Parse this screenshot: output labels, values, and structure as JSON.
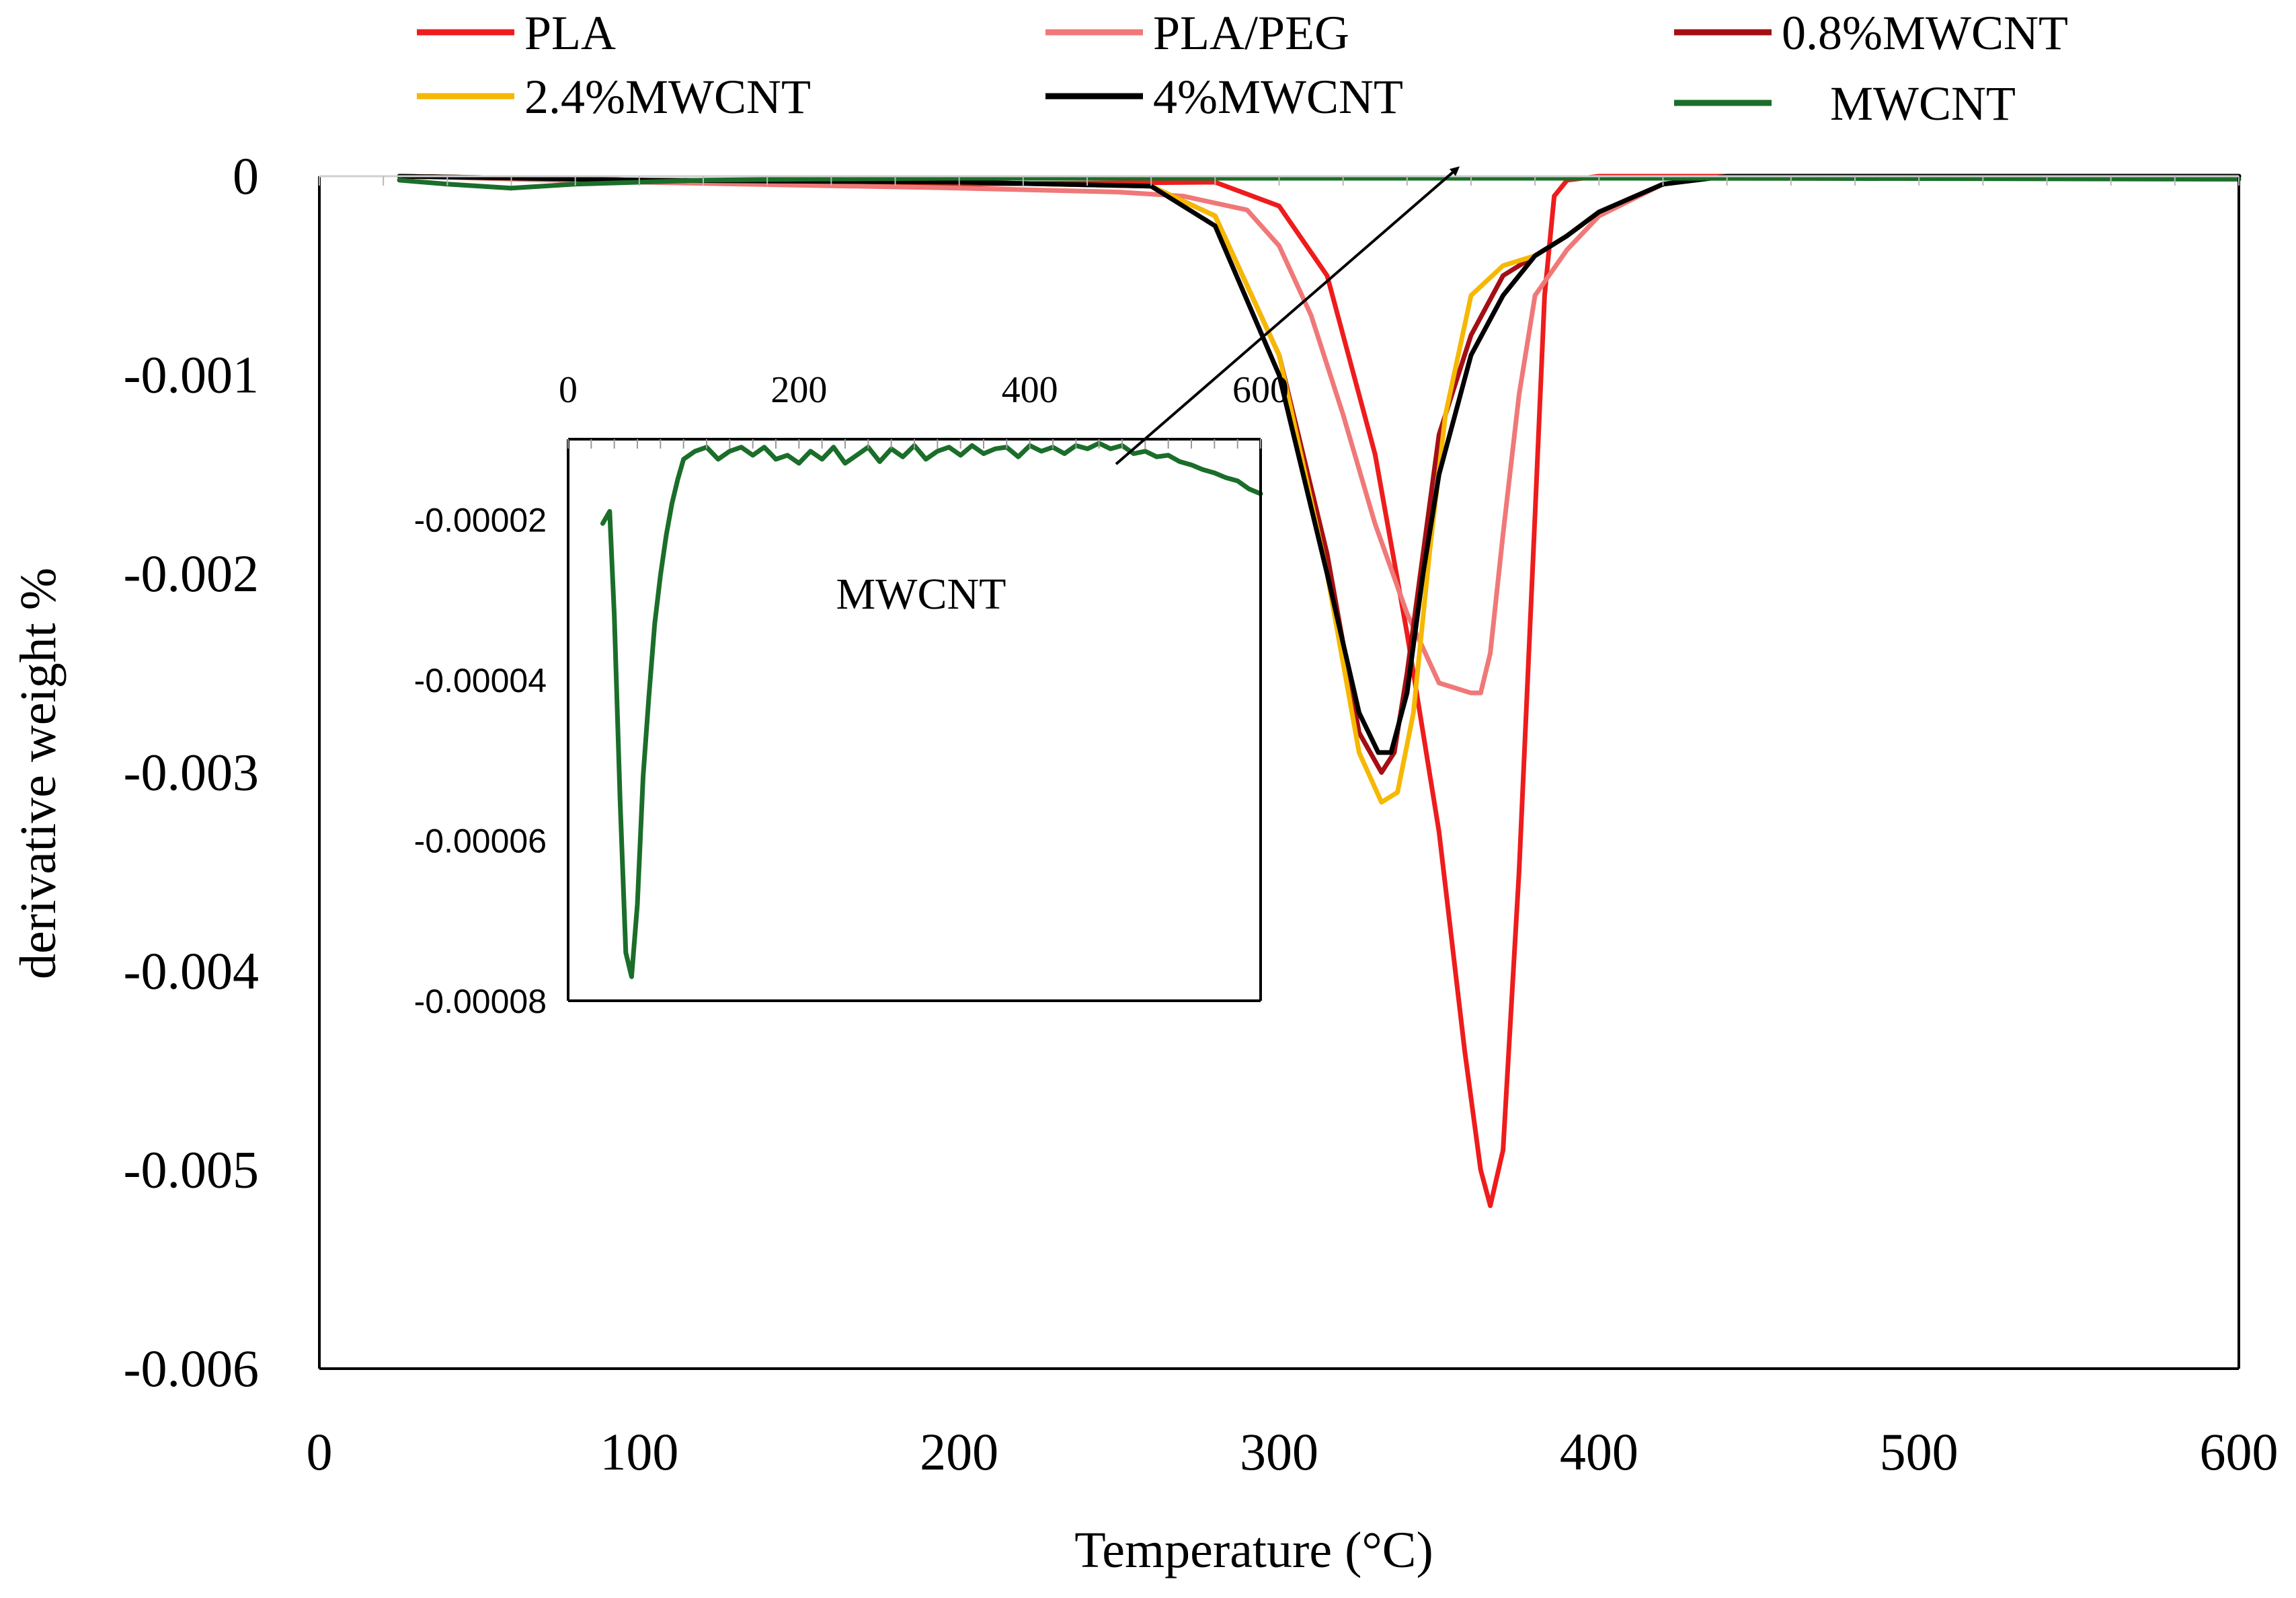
{
  "chart_data": [
    {
      "type": "line",
      "title": "",
      "xlabel": "Temperature (°C)",
      "ylabel": "derivative weight %",
      "xlim": [
        0,
        600
      ],
      "ylim": [
        -0.006,
        0
      ],
      "x_ticks": [
        0,
        100,
        200,
        300,
        400,
        500,
        600
      ],
      "x_tick_labels": [
        "0",
        "100",
        "200",
        "300",
        "400",
        "500",
        "600"
      ],
      "y_ticks": [
        0,
        -0.001,
        -0.002,
        -0.003,
        -0.004,
        -0.005,
        -0.006
      ],
      "y_tick_labels": [
        "0",
        "-0.001",
        "-0.002",
        "-0.003",
        "-0.004",
        "-0.005",
        "-0.006"
      ],
      "grid": false,
      "legend_position": "top",
      "series": [
        {
          "name": "PLA",
          "color": "#ee1c1c",
          "x": [
            25,
            100,
            200,
            280,
            300,
            315,
            330,
            340,
            350,
            358,
            363,
            366,
            370,
            375,
            380,
            383,
            386,
            390,
            400,
            500,
            600
          ],
          "y": [
            0,
            -2e-05,
            -4e-05,
            -3e-05,
            -0.00015,
            -0.0005,
            -0.0014,
            -0.0023,
            -0.0033,
            -0.0044,
            -0.005,
            -0.00518,
            -0.0049,
            -0.0035,
            -0.0017,
            -0.0006,
            -0.0001,
            -2e-05,
            0,
            0,
            0
          ]
        },
        {
          "name": "PLA/PEG",
          "color": "#f07878",
          "x": [
            25,
            100,
            200,
            250,
            270,
            290,
            300,
            310,
            320,
            330,
            340,
            350,
            360,
            363,
            366,
            370,
            375,
            380,
            390,
            400,
            420,
            440,
            500,
            600
          ],
          "y": [
            0,
            -3e-05,
            -6e-05,
            -8e-05,
            -0.0001,
            -0.00017,
            -0.00035,
            -0.0007,
            -0.0012,
            -0.00175,
            -0.0022,
            -0.00255,
            -0.0026,
            -0.0026,
            -0.0024,
            -0.0018,
            -0.0011,
            -0.0006,
            -0.00037,
            -0.0002,
            -4e-05,
            0,
            0,
            0
          ]
        },
        {
          "name": "0.8%MWCNT",
          "color": "#a50f14",
          "x": [
            25,
            100,
            200,
            260,
            280,
            300,
            315,
            325,
            332,
            336,
            340,
            345,
            350,
            360,
            370,
            380,
            390,
            400,
            420,
            440,
            600
          ],
          "y": [
            0,
            -2e-05,
            -3e-05,
            -5e-05,
            -0.0002,
            -0.0009,
            -0.0019,
            -0.0028,
            -0.003,
            -0.0029,
            -0.0025,
            -0.0019,
            -0.0013,
            -0.0008,
            -0.0005,
            -0.0004,
            -0.0003,
            -0.00018,
            -4e-05,
            0,
            0
          ]
        },
        {
          "name": "2.4%MWCNT",
          "color": "#f6b800",
          "x": [
            25,
            100,
            200,
            260,
            280,
            300,
            315,
            325,
            332,
            337,
            342,
            347,
            352,
            360,
            370,
            380,
            390,
            400,
            420,
            440,
            600
          ],
          "y": [
            0,
            -2e-05,
            -3e-05,
            -5e-05,
            -0.0002,
            -0.0009,
            -0.002,
            -0.0029,
            -0.00315,
            -0.0031,
            -0.0027,
            -0.0019,
            -0.0012,
            -0.0006,
            -0.00045,
            -0.0004,
            -0.0003,
            -0.00018,
            -4e-05,
            0,
            0
          ]
        },
        {
          "name": "4%MWCNT",
          "color": "#000000",
          "x": [
            25,
            100,
            200,
            260,
            280,
            300,
            315,
            325,
            331,
            335,
            340,
            345,
            350,
            360,
            370,
            380,
            390,
            400,
            420,
            440,
            600
          ],
          "y": [
            0,
            -2e-05,
            -3e-05,
            -5e-05,
            -0.00025,
            -0.001,
            -0.002,
            -0.0027,
            -0.0029,
            -0.0029,
            -0.0026,
            -0.002,
            -0.0015,
            -0.0009,
            -0.0006,
            -0.0004,
            -0.0003,
            -0.00018,
            -4e-05,
            0,
            0
          ]
        },
        {
          "name": "MWCNT",
          "color": "#1b6e2a",
          "x": [
            25,
            40,
            60,
            80,
            100,
            120,
            150,
            200,
            300,
            400,
            500,
            600
          ],
          "y": [
            -2e-05,
            -4e-05,
            -6e-05,
            -4e-05,
            -3e-05,
            -2e-05,
            -1.5e-05,
            -1e-05,
            -1e-05,
            -1e-05,
            -1.2e-05,
            -1.5e-05
          ]
        }
      ],
      "legend_label_offsets": [
        0,
        0,
        0,
        0,
        0,
        18
      ]
    },
    {
      "type": "line",
      "title": "MWCNT",
      "xlabel": "",
      "ylabel": "",
      "xlim": [
        0,
        600
      ],
      "ylim": [
        -8e-05,
        -1e-05
      ],
      "x_ticks": [
        0,
        200,
        400,
        600
      ],
      "x_tick_labels": [
        "0",
        "200",
        "400",
        "600"
      ],
      "y_ticks": [
        -2e-05,
        -4e-05,
        -6e-05,
        -8e-05
      ],
      "y_tick_labels": [
        "-0.00002",
        "-0.00004",
        "-0.00006",
        "-0.00008"
      ],
      "x_axis_position": "top",
      "series": [
        {
          "name": "MWCNT",
          "color": "#1b6e2a",
          "x": [
            30,
            36,
            40,
            45,
            50,
            55,
            60,
            65,
            70,
            75,
            80,
            85,
            90,
            95,
            100,
            110,
            120,
            130,
            140,
            150,
            160,
            170,
            180,
            190,
            200,
            210,
            220,
            230,
            240,
            250,
            260,
            270,
            280,
            290,
            300,
            310,
            320,
            330,
            340,
            350,
            360,
            370,
            380,
            390,
            400,
            410,
            420,
            430,
            440,
            450,
            460,
            470,
            480,
            490,
            500,
            510,
            520,
            530,
            540,
            550,
            560,
            570,
            580,
            590,
            600
          ],
          "y": [
            -2.05e-05,
            -1.9e-05,
            -3.2e-05,
            -5.5e-05,
            -7.4e-05,
            -7.7e-05,
            -6.8e-05,
            -5.2e-05,
            -4.2e-05,
            -3.3e-05,
            -2.7e-05,
            -2.2e-05,
            -1.8e-05,
            -1.5e-05,
            -1.25e-05,
            -1.15e-05,
            -1.1e-05,
            -1.25e-05,
            -1.15e-05,
            -1.1e-05,
            -1.2e-05,
            -1.1e-05,
            -1.25e-05,
            -1.2e-05,
            -1.3e-05,
            -1.15e-05,
            -1.25e-05,
            -1.1e-05,
            -1.3e-05,
            -1.2e-05,
            -1.1e-05,
            -1.28e-05,
            -1.12e-05,
            -1.22e-05,
            -1.08e-05,
            -1.25e-05,
            -1.15e-05,
            -1.1e-05,
            -1.2e-05,
            -1.08e-05,
            -1.18e-05,
            -1.12e-05,
            -1.1e-05,
            -1.22e-05,
            -1.08e-05,
            -1.15e-05,
            -1.1e-05,
            -1.18e-05,
            -1.08e-05,
            -1.12e-05,
            -1.05e-05,
            -1.12e-05,
            -1.08e-05,
            -1.18e-05,
            -1.15e-05,
            -1.22e-05,
            -1.2e-05,
            -1.28e-05,
            -1.32e-05,
            -1.38e-05,
            -1.42e-05,
            -1.48e-05,
            -1.52e-05,
            -1.62e-05,
            -1.68e-05
          ]
        }
      ]
    }
  ],
  "ui": {
    "inset_label": "MWCNT"
  }
}
